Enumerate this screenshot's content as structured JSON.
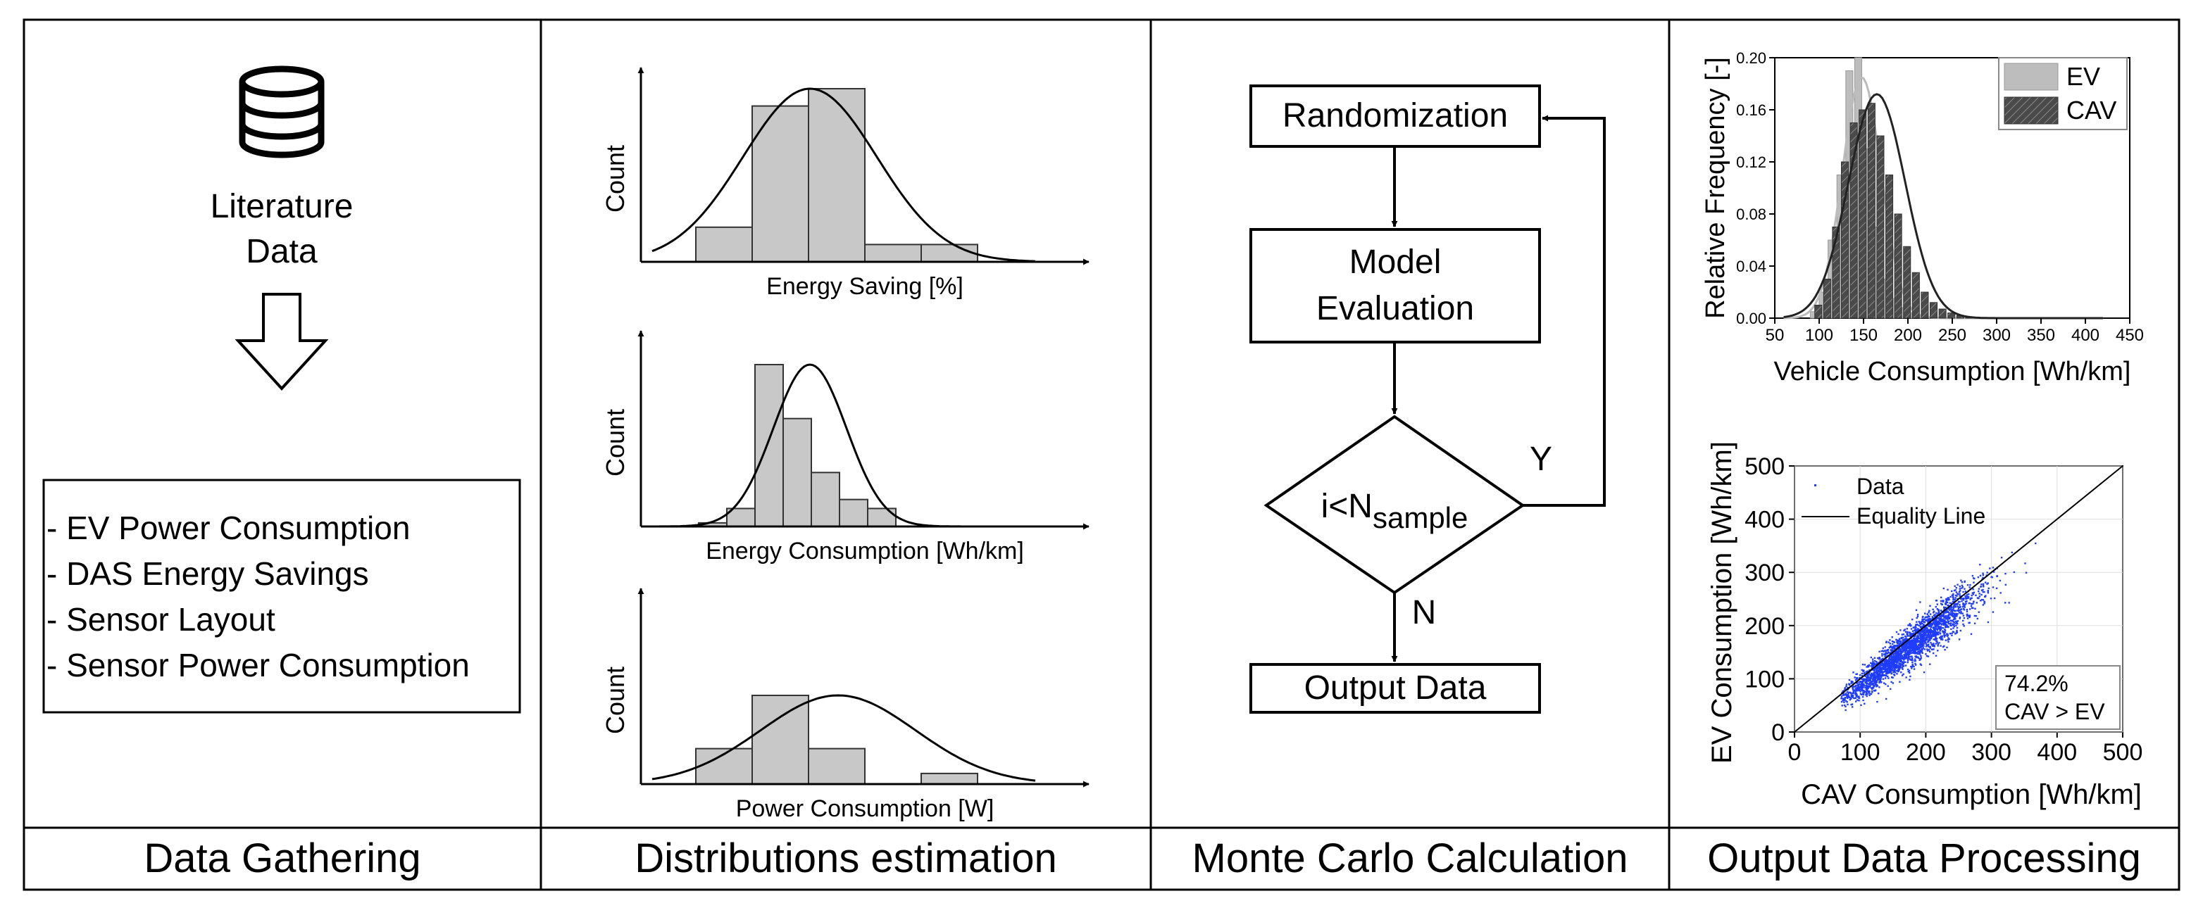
{
  "panels": {
    "data_gathering": {
      "caption": "Data Gathering",
      "icon": "database-icon",
      "literature_line1": "Literature",
      "literature_line2": "Data",
      "items": [
        "- EV Power Consumption",
        "- DAS Energy Savings",
        "- Sensor Layout",
        "- Sensor Power Consumption"
      ]
    },
    "distributions": {
      "caption": "Distributions estimation",
      "y_label": "Count",
      "histograms": [
        {
          "xlabel": "Energy Saving [%]",
          "values": [
            2,
            9,
            10,
            1,
            1
          ]
        },
        {
          "xlabel": "Energy Consumption [Wh/km]",
          "values": [
            0.2,
            1,
            9,
            6,
            3,
            1.5,
            1
          ]
        },
        {
          "xlabel": "Power Consumption [W]",
          "values": [
            2,
            5,
            2,
            0,
            0.6
          ]
        }
      ]
    },
    "monte_carlo": {
      "caption": "Monte Carlo Calculation",
      "randomization": "Randomization",
      "model_line1": "Model",
      "model_line2": "Evaluation",
      "condition_main": "i<N",
      "condition_sub": "sample",
      "yes": "Y",
      "no": "N",
      "output": "Output Data"
    },
    "output_processing": {
      "caption": "Output Data Processing"
    }
  },
  "chart_data": [
    {
      "type": "bar",
      "title": "",
      "xlabel": "Vehicle Consumption [Wh/km]",
      "ylabel": "Relative Frequency [-]",
      "xlim": [
        50,
        450
      ],
      "ylim": [
        0,
        0.2
      ],
      "xticks": [
        50,
        100,
        150,
        200,
        250,
        300,
        350,
        400,
        450
      ],
      "yticks": [
        0.0,
        0.04,
        0.08,
        0.12,
        0.16,
        0.2
      ],
      "ytick_labels": [
        "0.00",
        "0.04",
        "0.08",
        "0.12",
        "0.16",
        "0.20"
      ],
      "legend": [
        "EV",
        "CAV"
      ],
      "legend_position": "top-right",
      "series": [
        {
          "name": "EV",
          "color": "#bdbdbd",
          "x": [
            95,
            105,
            115,
            125,
            135,
            145,
            155,
            165,
            175,
            185,
            195,
            205,
            215,
            225
          ],
          "values": [
            0.005,
            0.02,
            0.06,
            0.11,
            0.19,
            0.2,
            0.13,
            0.07,
            0.03,
            0.015,
            0.008,
            0.004,
            0.002,
            0.001
          ]
        },
        {
          "name": "CAV",
          "color": "#555555",
          "x": [
            100,
            110,
            120,
            130,
            140,
            150,
            160,
            170,
            180,
            190,
            200,
            210,
            220,
            230,
            240,
            250,
            260,
            270
          ],
          "values": [
            0.01,
            0.03,
            0.07,
            0.12,
            0.15,
            0.16,
            0.165,
            0.14,
            0.11,
            0.08,
            0.055,
            0.035,
            0.02,
            0.012,
            0.007,
            0.004,
            0.002,
            0.001
          ]
        }
      ]
    },
    {
      "type": "scatter",
      "title": "",
      "xlabel": "CAV Consumption [Wh/km]",
      "ylabel": "EV Consumption [Wh/km]",
      "xlim": [
        0,
        500
      ],
      "ylim": [
        0,
        500
      ],
      "xticks": [
        0,
        100,
        200,
        300,
        400,
        500
      ],
      "yticks": [
        0,
        100,
        200,
        300,
        400,
        500
      ],
      "legend": [
        "Data",
        "Equality Line"
      ],
      "legend_position": "top-left",
      "annotation_line1": "74.2%",
      "annotation_line2": "CAV > EV",
      "point_color": "#1f3cff",
      "equality_line": [
        [
          0,
          0
        ],
        [
          500,
          500
        ]
      ]
    }
  ]
}
